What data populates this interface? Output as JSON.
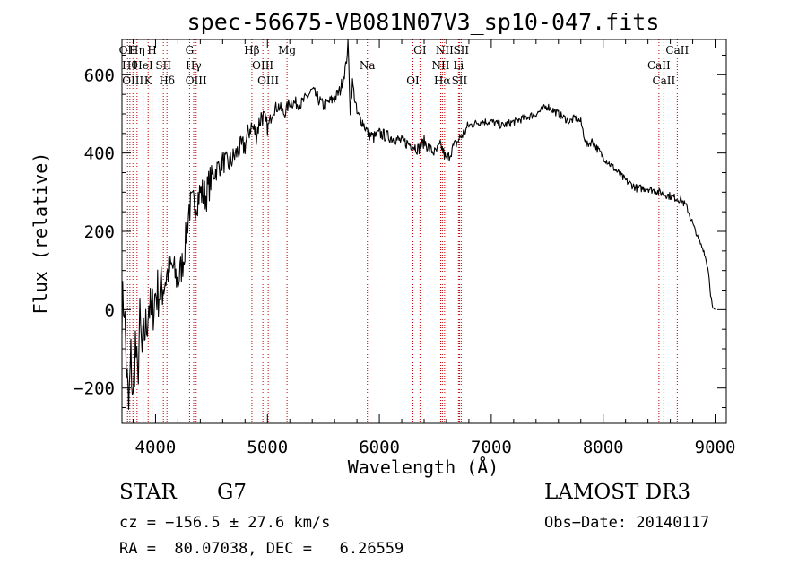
{
  "chart_data": {
    "type": "line",
    "title": "spec-56675-VB081N07V3_sp10-047.fits",
    "xlabel": "Wavelength (Å)",
    "ylabel": "Flux (relative)",
    "xlim": [
      3700,
      9100
    ],
    "ylim": [
      -290,
      690
    ],
    "xticks": [
      4000,
      5000,
      6000,
      7000,
      8000,
      9000
    ],
    "xtick_labels": [
      "4000",
      "5000",
      "6000",
      "7000",
      "8000",
      "9000"
    ],
    "yticks": [
      -200,
      0,
      200,
      400,
      600
    ],
    "ytick_labels": [
      "−200",
      "0",
      "200",
      "400",
      "600"
    ],
    "grid": false,
    "series": [
      {
        "name": "spectrum",
        "x": [
          3700,
          3720,
          3740,
          3760,
          3780,
          3800,
          3820,
          3840,
          3860,
          3880,
          3900,
          3920,
          3940,
          3960,
          3980,
          4000,
          4050,
          4100,
          4150,
          4200,
          4250,
          4300,
          4350,
          4400,
          4450,
          4500,
          4550,
          4600,
          4650,
          4700,
          4750,
          4800,
          4850,
          4900,
          4950,
          5000,
          5050,
          5100,
          5150,
          5200,
          5300,
          5400,
          5500,
          5600,
          5650,
          5700,
          5720,
          5740,
          5760,
          5800,
          5850,
          5900,
          5950,
          6000,
          6100,
          6200,
          6300,
          6350,
          6400,
          6450,
          6500,
          6550,
          6600,
          6650,
          6700,
          6750,
          6800,
          6900,
          7000,
          7100,
          7200,
          7300,
          7400,
          7500,
          7600,
          7700,
          7750,
          7800,
          7850,
          7900,
          8000,
          8100,
          8200,
          8300,
          8400,
          8500,
          8600,
          8700,
          8750,
          8800,
          8850,
          8900,
          8940,
          8960,
          8980,
          9000
        ],
        "y": [
          10,
          20,
          -150,
          -260,
          -120,
          -240,
          -80,
          -190,
          -30,
          -120,
          -60,
          -40,
          20,
          -20,
          10,
          40,
          50,
          90,
          110,
          70,
          130,
          260,
          270,
          300,
          290,
          340,
          360,
          380,
          370,
          390,
          410,
          420,
          470,
          450,
          500,
          460,
          510,
          520,
          500,
          530,
          525,
          560,
          520,
          540,
          560,
          620,
          680,
          510,
          580,
          500,
          480,
          450,
          440,
          450,
          440,
          430,
          420,
          410,
          430,
          410,
          400,
          420,
          380,
          410,
          430,
          450,
          470,
          480,
          480,
          470,
          480,
          490,
          500,
          520,
          500,
          480,
          490,
          480,
          420,
          430,
          390,
          360,
          330,
          310,
          310,
          300,
          290,
          280,
          260,
          220,
          180,
          150,
          100,
          40,
          0,
          0
        ]
      }
    ],
    "lines": [
      {
        "x": 3750,
        "label": "OII"
      },
      {
        "x": 3771,
        "label": "Hθ"
      },
      {
        "x": 3798,
        "label": "OIII"
      },
      {
        "x": 3835,
        "label": "Hη"
      },
      {
        "x": 3889,
        "label": "HeI"
      },
      {
        "x": 3934,
        "label": "K"
      },
      {
        "x": 3969,
        "label": "H"
      },
      {
        "x": 4070,
        "label": "SII"
      },
      {
        "x": 4102,
        "label": "Hδ"
      },
      {
        "x": 4304,
        "label": "G"
      },
      {
        "x": 4341,
        "label": "Hγ"
      },
      {
        "x": 4363,
        "label": "OIII"
      },
      {
        "x": 4861,
        "label": "Hβ"
      },
      {
        "x": 4959,
        "label": "OIII"
      },
      {
        "x": 5007,
        "label": "OIII"
      },
      {
        "x": 5175,
        "label": "Mg"
      },
      {
        "x": 5893,
        "label": "Na"
      },
      {
        "x": 6300,
        "label": "OI"
      },
      {
        "x": 6363,
        "label": "OI"
      },
      {
        "x": 6548,
        "label": "NII"
      },
      {
        "x": 6563,
        "label": "Hα"
      },
      {
        "x": 6583,
        "label": "NII"
      },
      {
        "x": 6707,
        "label": "Li"
      },
      {
        "x": 6716,
        "label": "SII"
      },
      {
        "x": 6731,
        "label": "SII"
      },
      {
        "x": 8498,
        "label": "CaII"
      },
      {
        "x": 8542,
        "label": "CaII"
      },
      {
        "x": 8662,
        "label": "CaII"
      }
    ]
  },
  "footer": {
    "class_label": "STAR",
    "subclass_label": "G7",
    "survey_label": "LAMOST DR3",
    "cz_text": "cz = −156.5 ± 27.6 km/s",
    "obs_date_text": "Obs−Date: 20140117",
    "coords_text": "RA =  80.07038, DEC =   6.26559"
  },
  "colors": {
    "spectrum": "#000000",
    "line_markers": "#c00000",
    "axes": "#000000"
  }
}
